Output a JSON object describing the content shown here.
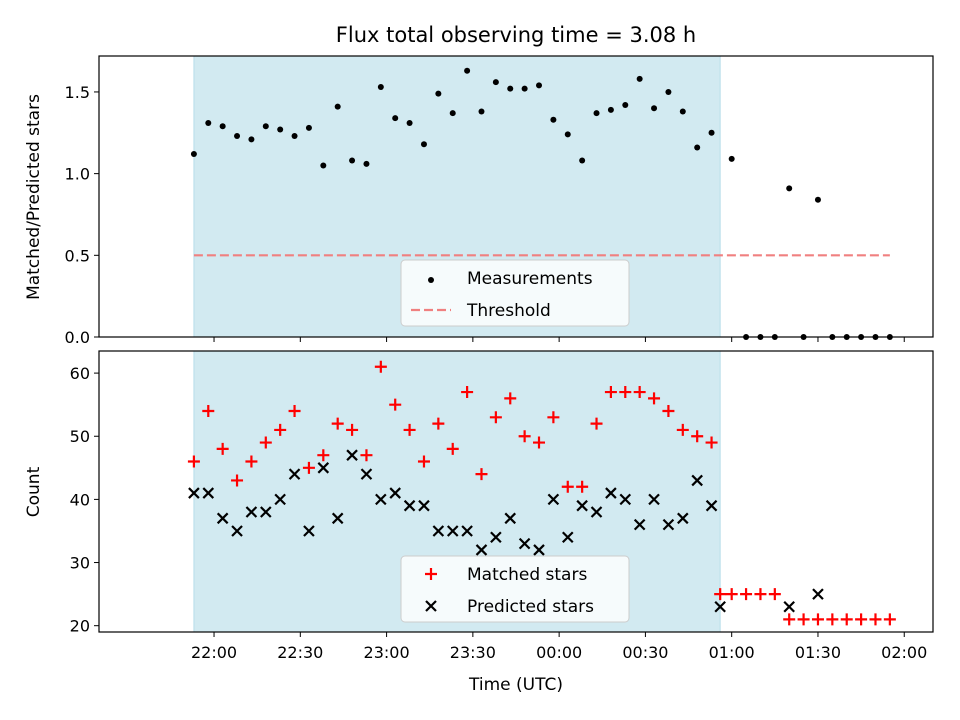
{
  "chart_data": [
    {
      "type": "scatter",
      "title": "Flux total observing time = 3.08 h",
      "xlabel": "",
      "ylabel": "Matched/Predicted stars",
      "ylim": [
        0,
        1.72
      ],
      "yticks": [
        "0.0",
        "0.5",
        "1.0",
        "1.5"
      ],
      "ytick_values": [
        0,
        0.5,
        1.0,
        1.5
      ],
      "legend_position": "lower-center",
      "highlight_band": {
        "from": "21:53",
        "to": "00:56",
        "color": "#add8e6"
      },
      "threshold": {
        "name": "Threshold",
        "value": 0.5,
        "color": "#f08080",
        "x_from": "21:53",
        "x_to": "01:55"
      },
      "series": [
        {
          "name": "Measurements",
          "color": "#000000",
          "marker": "dot",
          "x": [
            "21:53",
            "21:58",
            "22:03",
            "22:08",
            "22:13",
            "22:18",
            "22:23",
            "22:28",
            "22:33",
            "22:38",
            "22:43",
            "22:48",
            "22:53",
            "22:58",
            "23:03",
            "23:08",
            "23:13",
            "23:18",
            "23:23",
            "23:28",
            "23:33",
            "23:38",
            "23:43",
            "23:48",
            "23:53",
            "23:58",
            "00:03",
            "00:08",
            "00:13",
            "00:18",
            "00:23",
            "00:28",
            "00:33",
            "00:38",
            "00:43",
            "00:48",
            "00:53",
            "01:00",
            "01:05",
            "01:10",
            "01:15",
            "01:20",
            "01:25",
            "01:30",
            "01:35",
            "01:40",
            "01:45",
            "01:50",
            "01:55"
          ],
          "y": [
            1.12,
            1.31,
            1.29,
            1.23,
            1.21,
            1.29,
            1.27,
            1.23,
            1.28,
            1.05,
            1.41,
            1.08,
            1.06,
            1.53,
            1.34,
            1.31,
            1.18,
            1.49,
            1.37,
            1.63,
            1.38,
            1.56,
            1.52,
            1.52,
            1.54,
            1.33,
            1.24,
            1.08,
            1.37,
            1.39,
            1.42,
            1.58,
            1.4,
            1.5,
            1.38,
            1.16,
            1.25,
            1.09,
            0.0,
            0.0,
            0.0,
            0.91,
            0.0,
            0.84,
            0.0,
            0.0,
            0.0,
            0.0,
            0.0
          ]
        }
      ]
    },
    {
      "type": "scatter",
      "title": "",
      "xlabel": "Time (UTC)",
      "ylabel": "Count",
      "ylim": [
        19,
        63.5
      ],
      "yticks": [
        "20",
        "30",
        "40",
        "50",
        "60"
      ],
      "ytick_values": [
        20,
        30,
        40,
        50,
        60
      ],
      "xticks": [
        "22:00",
        "22:30",
        "23:00",
        "23:30",
        "00:00",
        "00:30",
        "01:00",
        "01:30",
        "02:00"
      ],
      "legend_position": "lower-center",
      "highlight_band": {
        "from": "21:53",
        "to": "00:56",
        "color": "#add8e6"
      },
      "series": [
        {
          "name": "Matched stars",
          "color": "#ff0000",
          "marker": "plus",
          "x": [
            "21:53",
            "21:58",
            "22:03",
            "22:08",
            "22:13",
            "22:18",
            "22:23",
            "22:28",
            "22:33",
            "22:38",
            "22:43",
            "22:48",
            "22:53",
            "22:58",
            "23:03",
            "23:08",
            "23:13",
            "23:18",
            "23:23",
            "23:28",
            "23:33",
            "23:38",
            "23:43",
            "23:48",
            "23:53",
            "23:58",
            "00:03",
            "00:08",
            "00:13",
            "00:18",
            "00:23",
            "00:28",
            "00:33",
            "00:38",
            "00:43",
            "00:48",
            "00:53",
            "00:56",
            "01:00",
            "01:05",
            "01:10",
            "01:15",
            "01:20",
            "01:25",
            "01:30",
            "01:35",
            "01:40",
            "01:45",
            "01:50",
            "01:55"
          ],
          "y": [
            46,
            54,
            48,
            43,
            46,
            49,
            51,
            54,
            45,
            47,
            52,
            51,
            47,
            61,
            55,
            51,
            46,
            52,
            48,
            57,
            44,
            53,
            56,
            50,
            49,
            53,
            42,
            42,
            52,
            57,
            57,
            57,
            56,
            54,
            51,
            50,
            49,
            25,
            25,
            25,
            25,
            25,
            21,
            21,
            21,
            21,
            21,
            21,
            21,
            21
          ]
        },
        {
          "name": "Predicted stars",
          "color": "#000000",
          "marker": "cross",
          "x": [
            "21:53",
            "21:58",
            "22:03",
            "22:08",
            "22:13",
            "22:18",
            "22:23",
            "22:28",
            "22:33",
            "22:38",
            "22:43",
            "22:48",
            "22:53",
            "22:58",
            "23:03",
            "23:08",
            "23:13",
            "23:18",
            "23:23",
            "23:28",
            "23:33",
            "23:38",
            "23:43",
            "23:48",
            "23:53",
            "23:58",
            "00:03",
            "00:08",
            "00:13",
            "00:18",
            "00:23",
            "00:28",
            "00:33",
            "00:38",
            "00:43",
            "00:48",
            "00:53",
            "00:56",
            "01:20",
            "01:30"
          ],
          "y": [
            41,
            41,
            37,
            35,
            38,
            38,
            40,
            44,
            35,
            45,
            37,
            47,
            44,
            40,
            41,
            39,
            39,
            35,
            35,
            35,
            32,
            34,
            37,
            33,
            32,
            40,
            34,
            39,
            38,
            41,
            40,
            36,
            40,
            36,
            37,
            43,
            39,
            23,
            23,
            25
          ]
        }
      ]
    }
  ]
}
